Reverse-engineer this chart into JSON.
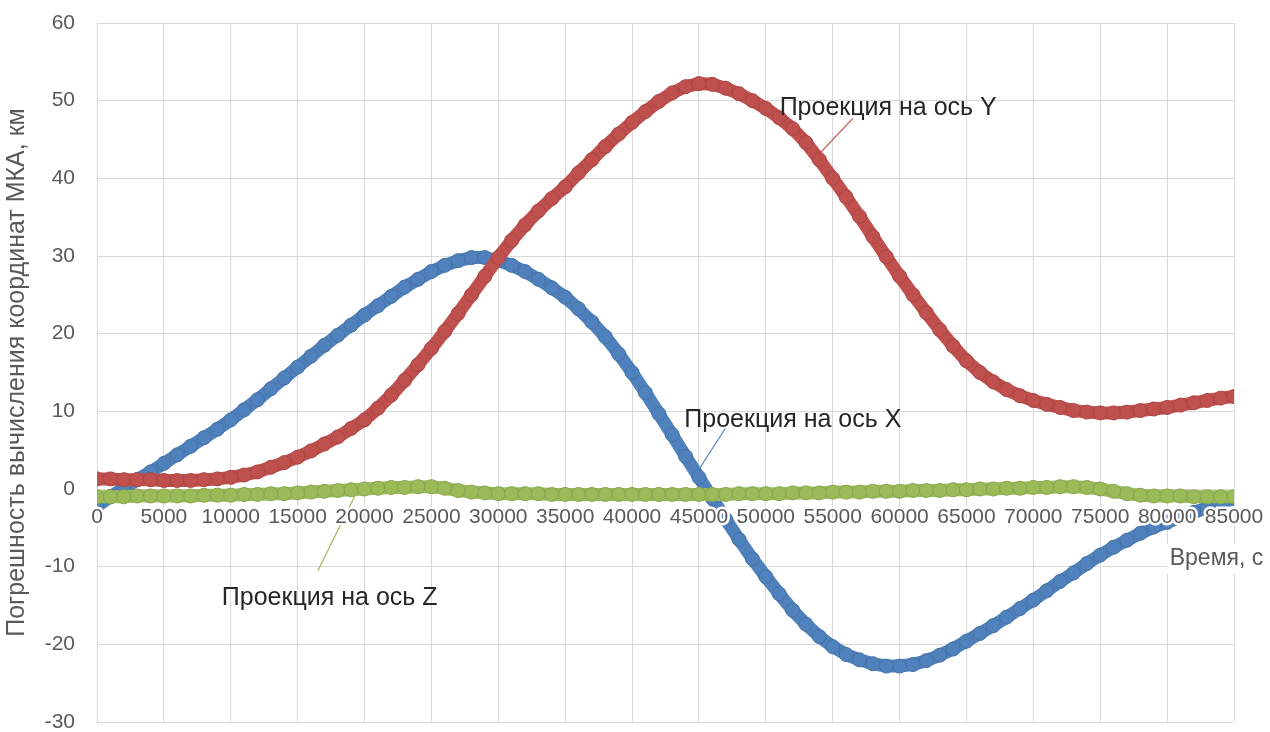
{
  "chart_data": {
    "type": "line",
    "xlabel": "Время, с",
    "ylabel": "Погрешность вычисления координат МКА, км",
    "x": [
      0,
      1000,
      2000,
      3000,
      4000,
      5000,
      6000,
      7000,
      8000,
      9000,
      10000,
      11000,
      12000,
      13000,
      14000,
      15000,
      16000,
      17000,
      18000,
      19000,
      20000,
      21000,
      22000,
      23000,
      24000,
      25000,
      26000,
      27000,
      28000,
      29000,
      30000,
      31000,
      32000,
      33000,
      34000,
      35000,
      36000,
      37000,
      38000,
      39000,
      40000,
      41000,
      42000,
      43000,
      44000,
      45000,
      46000,
      47000,
      48000,
      49000,
      50000,
      51000,
      52000,
      53000,
      54000,
      55000,
      56000,
      57000,
      58000,
      59000,
      60000,
      61000,
      62000,
      63000,
      64000,
      65000,
      66000,
      67000,
      68000,
      69000,
      70000,
      71000,
      72000,
      73000,
      74000,
      75000,
      76000,
      77000,
      78000,
      79000,
      80000,
      81000,
      82000,
      83000,
      84000,
      85000
    ],
    "series": [
      {
        "color": "#4f81bd",
        "values": [
          -2.2,
          -1.0,
          0.1,
          1.2,
          2.2,
          3.3,
          4.4,
          5.5,
          6.6,
          7.7,
          8.9,
          10.2,
          11.5,
          12.9,
          14.3,
          15.7,
          17.1,
          18.5,
          19.8,
          21.1,
          22.4,
          23.6,
          24.8,
          26.0,
          27.0,
          28.0,
          28.8,
          29.4,
          29.8,
          29.8,
          29.4,
          28.8,
          28.0,
          27.0,
          25.9,
          24.7,
          23.2,
          21.5,
          19.6,
          17.4,
          15.0,
          12.4,
          9.7,
          7.0,
          4.2,
          1.5,
          -1.2,
          -3.9,
          -6.5,
          -9.0,
          -11.3,
          -13.5,
          -15.6,
          -17.4,
          -19.0,
          -20.3,
          -21.3,
          -22.0,
          -22.5,
          -22.8,
          -22.8,
          -22.6,
          -22.1,
          -21.4,
          -20.6,
          -19.6,
          -18.6,
          -17.6,
          -16.5,
          -15.4,
          -14.3,
          -13.1,
          -11.9,
          -10.8,
          -9.6,
          -8.5,
          -7.5,
          -6.6,
          -5.7,
          -4.9,
          -4.3,
          -3.6,
          -3.0,
          -2.4,
          -1.8,
          -1.2
        ]
      },
      {
        "color": "#c0504d",
        "values": [
          1.3,
          1.3,
          1.2,
          1.2,
          1.2,
          1.1,
          1.1,
          1.1,
          1.2,
          1.3,
          1.5,
          1.8,
          2.2,
          2.8,
          3.4,
          4.1,
          4.9,
          5.8,
          6.7,
          7.8,
          8.9,
          10.4,
          12.1,
          14.0,
          16.0,
          18.1,
          20.3,
          22.6,
          25.0,
          27.4,
          29.8,
          32.0,
          34.0,
          35.8,
          37.4,
          38.9,
          40.7,
          42.4,
          44.1,
          45.7,
          47.2,
          48.6,
          49.9,
          51.0,
          51.8,
          52.2,
          52.1,
          51.6,
          50.9,
          50.0,
          49.0,
          47.8,
          46.4,
          44.6,
          42.4,
          40.0,
          37.6,
          35.1,
          32.5,
          29.9,
          27.4,
          25.0,
          22.7,
          20.5,
          18.4,
          16.5,
          15.0,
          13.8,
          12.8,
          12.0,
          11.4,
          10.9,
          10.5,
          10.1,
          9.9,
          9.8,
          9.8,
          9.9,
          10.1,
          10.3,
          10.5,
          10.8,
          11.1,
          11.4,
          11.7,
          11.9
        ]
      },
      {
        "color": "#9bbb59",
        "values": [
          -1.0,
          -1.0,
          -1.0,
          -0.9,
          -0.9,
          -0.9,
          -0.9,
          -0.9,
          -0.8,
          -0.8,
          -0.8,
          -0.7,
          -0.7,
          -0.6,
          -0.6,
          -0.5,
          -0.4,
          -0.3,
          -0.2,
          -0.1,
          0.0,
          0.1,
          0.2,
          0.2,
          0.3,
          0.3,
          0.1,
          -0.2,
          -0.4,
          -0.5,
          -0.6,
          -0.6,
          -0.6,
          -0.6,
          -0.7,
          -0.7,
          -0.7,
          -0.7,
          -0.7,
          -0.7,
          -0.7,
          -0.7,
          -0.7,
          -0.7,
          -0.7,
          -0.7,
          -0.7,
          -0.7,
          -0.6,
          -0.6,
          -0.6,
          -0.6,
          -0.5,
          -0.5,
          -0.5,
          -0.4,
          -0.4,
          -0.4,
          -0.3,
          -0.3,
          -0.3,
          -0.2,
          -0.2,
          -0.2,
          -0.1,
          -0.1,
          0.0,
          0.0,
          0.1,
          0.1,
          0.2,
          0.2,
          0.3,
          0.3,
          0.2,
          0.0,
          -0.3,
          -0.6,
          -0.8,
          -0.9,
          -0.9,
          -0.9,
          -1.0,
          -1.0,
          -1.0,
          -1.0
        ]
      }
    ],
    "xlim": [
      0,
      85000
    ],
    "xticks": [
      0,
      5000,
      10000,
      15000,
      20000,
      25000,
      30000,
      35000,
      40000,
      45000,
      50000,
      55000,
      60000,
      65000,
      70000,
      75000,
      80000,
      85000
    ],
    "ylim": [
      -30,
      60
    ],
    "yticks": [
      -30,
      -20,
      -10,
      0,
      10,
      20,
      30,
      40,
      50,
      60
    ],
    "grid": true,
    "marker": "circle",
    "line_style": "solid",
    "annotations": [
      {
        "text": "Проекция на ось Y",
        "x": 53800,
        "y": 42.8
      },
      {
        "text": "Проекция на ось X",
        "x": 44800,
        "y": 2.0
      },
      {
        "text": "Проекция на ось Z",
        "x": 19500,
        "y": -0.1
      }
    ]
  }
}
